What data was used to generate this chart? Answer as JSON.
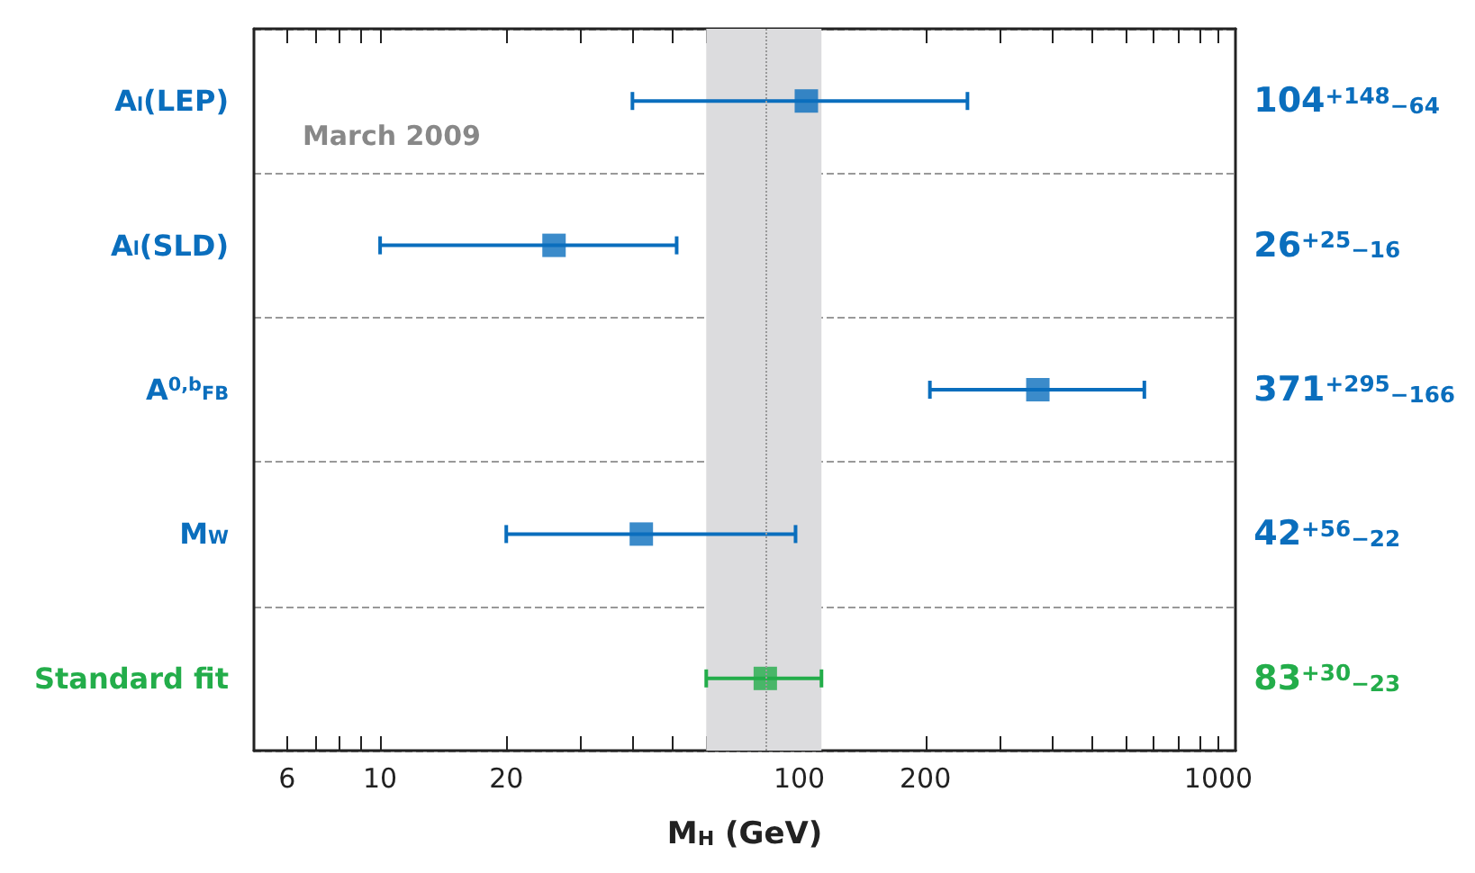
{
  "chart_data": {
    "type": "scatter",
    "orientation": "horizontal",
    "xlabel": "M$_{H}$ (GeV)",
    "categories": [
      "A$_{l}$(LEP)",
      "A$_{l}$(SLD)",
      "A$^{0,b}$$_{FB}$",
      "M$_{W}$",
      "Standard fit"
    ],
    "values": [
      104,
      26,
      371,
      42,
      83
    ],
    "errors": [
      [
        40,
        252
      ],
      [
        10,
        51
      ],
      [
        205,
        666
      ],
      [
        20,
        98
      ],
      [
        60,
        113
      ]
    ],
    "colors": [
      "#0a6ebd",
      "#0a6ebd",
      "#0a6ebd",
      "#0a6ebd",
      "#23ad4a"
    ],
    "log": "x",
    "xlim": [
      5,
      1100
    ],
    "xticks": [
      6,
      {
        "value": 7,
        "label": null
      },
      {
        "value": 8,
        "label": null
      },
      {
        "value": 9,
        "label": null
      },
      10,
      20,
      {
        "value": 30,
        "label": null
      },
      {
        "value": 40,
        "label": null
      },
      {
        "value": 50,
        "label": null
      },
      {
        "value": 60,
        "label": null
      },
      {
        "value": 70,
        "label": null
      },
      {
        "value": 80,
        "label": null
      },
      {
        "value": 90,
        "label": null
      },
      100,
      200,
      {
        "value": 300,
        "label": null
      },
      {
        "value": 400,
        "label": null
      },
      {
        "value": 500,
        "label": null
      },
      {
        "value": 600,
        "label": null
      },
      {
        "value": 700,
        "label": null
      },
      {
        "value": 800,
        "label": null
      },
      {
        "value": 900,
        "label": null
      },
      1000
    ],
    "bands": [
      {
        "axis": "x",
        "from": 60,
        "to": 113,
        "color": "#dcdcde"
      }
    ],
    "ref_lines": [
      {
        "axis": "x",
        "value": 83,
        "color": "#999999",
        "line_style": "dotted"
      }
    ],
    "grid": "y",
    "line_style": "dashed",
    "marker": "square",
    "y2_categories": [
      "104$^{+148}$$_{−64}$",
      "26$^{+25}$$_{−16}$",
      "371$^{+295}$$_{−166}$",
      "42$^{+56}$$_{−22}$",
      "83$^{+30}$$_{−23}$"
    ],
    "annotations": [
      "March 2009"
    ]
  }
}
